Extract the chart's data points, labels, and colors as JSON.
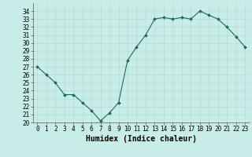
{
  "x": [
    0,
    1,
    2,
    3,
    4,
    5,
    6,
    7,
    8,
    9,
    10,
    11,
    12,
    13,
    14,
    15,
    16,
    17,
    18,
    19,
    20,
    21,
    22,
    23
  ],
  "y": [
    27.0,
    26.0,
    25.0,
    23.5,
    23.5,
    22.5,
    21.5,
    20.2,
    21.2,
    22.5,
    27.8,
    29.5,
    31.0,
    33.0,
    33.2,
    33.0,
    33.2,
    33.0,
    34.0,
    33.5,
    33.0,
    32.0,
    30.8,
    29.5
  ],
  "line_color": "#1a6b5a",
  "marker": "D",
  "marker_size": 2.0,
  "bg_color": "#c8ece8",
  "grid_color_major": "#b0d8d0",
  "grid_color_minor": "#c0e4dc",
  "xlabel": "Humidex (Indice chaleur)",
  "xlim": [
    -0.5,
    23.5
  ],
  "ylim": [
    20,
    35
  ],
  "yticks": [
    20,
    21,
    22,
    23,
    24,
    25,
    26,
    27,
    28,
    29,
    30,
    31,
    32,
    33,
    34
  ],
  "xticks": [
    0,
    1,
    2,
    3,
    4,
    5,
    6,
    7,
    8,
    9,
    10,
    11,
    12,
    13,
    14,
    15,
    16,
    17,
    18,
    19,
    20,
    21,
    22,
    23
  ],
  "xlabel_fontsize": 7,
  "tick_fontsize": 5.5
}
